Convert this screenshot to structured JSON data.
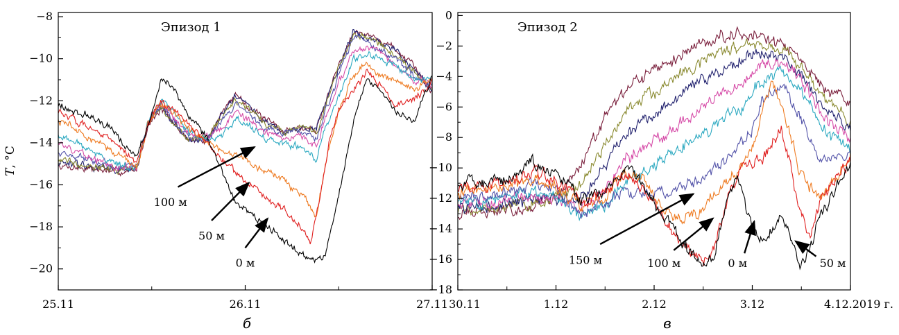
{
  "chart_data": [
    {
      "type": "line",
      "panel_label": "б",
      "episode_label": "Эпизод 1",
      "ylabel_italic": "T",
      "ylabel_unit": ", °C",
      "ylim": [
        -21,
        -7.8
      ],
      "yticks": [
        -20,
        -18,
        -16,
        -14,
        -12,
        -10,
        -8
      ],
      "ytick_labels": [
        "−20",
        "−18",
        "−16",
        "−14",
        "−12",
        "−10",
        "−8"
      ],
      "xlim": [
        0,
        2
      ],
      "xticks": [
        0,
        1,
        2
      ],
      "xtick_labels": [
        "25.11",
        "26.11",
        "27.11"
      ],
      "x_minor_ticks": [
        0.5,
        1.5
      ],
      "series": [
        {
          "name": "0 м",
          "color": "#000000",
          "x": [
            0,
            0.15,
            0.3,
            0.42,
            0.48,
            0.55,
            0.62,
            0.7,
            0.8,
            0.88,
            0.95,
            1.0,
            1.1,
            1.2,
            1.3,
            1.38,
            1.43,
            1.5,
            1.58,
            1.65,
            1.72,
            1.8,
            1.9,
            2.0
          ],
          "y": [
            -12.2,
            -12.7,
            -13.4,
            -14.8,
            -13.0,
            -11.0,
            -11.4,
            -12.8,
            -13.8,
            -15.5,
            -16.8,
            -17.2,
            -17.8,
            -18.6,
            -19.3,
            -19.6,
            -19.4,
            -16.5,
            -13.0,
            -10.8,
            -11.5,
            -12.5,
            -13.0,
            -10.8
          ]
        },
        {
          "name": "50 м",
          "color": "#e02020",
          "x": [
            0,
            0.15,
            0.3,
            0.42,
            0.48,
            0.55,
            0.62,
            0.7,
            0.8,
            0.88,
            0.95,
            1.0,
            1.1,
            1.2,
            1.3,
            1.35,
            1.4,
            1.45,
            1.5,
            1.58,
            1.65,
            1.72,
            1.8,
            1.9,
            2.0
          ],
          "y": [
            -12.5,
            -13.2,
            -14.0,
            -15.0,
            -13.1,
            -12.0,
            -12.5,
            -13.2,
            -14.0,
            -14.8,
            -15.5,
            -15.8,
            -16.5,
            -17.2,
            -18.0,
            -18.8,
            -16.5,
            -14.0,
            -12.5,
            -11.5,
            -10.5,
            -11.2,
            -12.2,
            -12.0,
            -11.0
          ]
        },
        {
          "name": "100 м",
          "color": "#ee7a20",
          "x": [
            0,
            0.15,
            0.3,
            0.42,
            0.48,
            0.55,
            0.62,
            0.7,
            0.8,
            0.88,
            0.95,
            1.0,
            1.1,
            1.2,
            1.3,
            1.38,
            1.43,
            1.5,
            1.58,
            1.65,
            1.72,
            1.8,
            1.9,
            2.0
          ],
          "y": [
            -12.9,
            -13.6,
            -14.4,
            -15.2,
            -13.1,
            -12.2,
            -12.6,
            -13.3,
            -14.0,
            -14.5,
            -14.5,
            -14.8,
            -15.3,
            -15.8,
            -16.5,
            -17.5,
            -15.0,
            -12.5,
            -10.8,
            -10.2,
            -10.8,
            -11.0,
            -11.5,
            -11.0
          ]
        },
        {
          "name": "",
          "color": "#2aa8c0",
          "x": [
            0,
            0.15,
            0.3,
            0.42,
            0.48,
            0.55,
            0.62,
            0.7,
            0.8,
            0.88,
            0.95,
            1.0,
            1.1,
            1.2,
            1.3,
            1.38,
            1.43,
            1.5,
            1.58,
            1.65,
            1.72,
            1.8,
            1.9,
            2.0
          ],
          "y": [
            -13.6,
            -14.3,
            -15.0,
            -15.2,
            -13.0,
            -12.0,
            -12.6,
            -13.5,
            -13.9,
            -13.6,
            -12.8,
            -13.0,
            -13.8,
            -14.0,
            -14.2,
            -14.8,
            -13.2,
            -11.8,
            -10.0,
            -9.8,
            -10.0,
            -10.3,
            -11.0,
            -10.9
          ]
        },
        {
          "name": "",
          "color": "#d64ca8",
          "x": [
            0,
            0.15,
            0.3,
            0.42,
            0.48,
            0.55,
            0.62,
            0.7,
            0.8,
            0.88,
            0.95,
            1.0,
            1.1,
            1.2,
            1.3,
            1.38,
            1.43,
            1.5,
            1.58,
            1.65,
            1.72,
            1.8,
            1.9,
            2.0
          ],
          "y": [
            -14.0,
            -14.6,
            -15.1,
            -15.2,
            -13.0,
            -12.1,
            -12.8,
            -13.6,
            -13.7,
            -13.2,
            -12.5,
            -12.8,
            -13.5,
            -13.7,
            -13.6,
            -14.2,
            -12.8,
            -11.2,
            -9.5,
            -9.5,
            -9.7,
            -10.2,
            -11.0,
            -11.2
          ]
        },
        {
          "name": "",
          "color": "#5252a8",
          "x": [
            0,
            0.15,
            0.3,
            0.42,
            0.48,
            0.55,
            0.62,
            0.7,
            0.8,
            0.88,
            0.95,
            1.0,
            1.1,
            1.2,
            1.3,
            1.38,
            1.43,
            1.5,
            1.58,
            1.65,
            1.72,
            1.8,
            1.9,
            2.0
          ],
          "y": [
            -14.4,
            -14.8,
            -15.2,
            -15.2,
            -13.0,
            -12.2,
            -13.0,
            -13.8,
            -13.9,
            -12.9,
            -12.2,
            -12.5,
            -13.3,
            -13.5,
            -13.4,
            -13.8,
            -12.5,
            -10.8,
            -9.0,
            -9.2,
            -9.6,
            -10.0,
            -10.8,
            -11.3
          ]
        },
        {
          "name": "",
          "color": "#8a8a30",
          "x": [
            0,
            0.15,
            0.3,
            0.42,
            0.48,
            0.55,
            0.62,
            0.7,
            0.8,
            0.88,
            0.95,
            1.0,
            1.1,
            1.2,
            1.3,
            1.38,
            1.43,
            1.5,
            1.58,
            1.65,
            1.72,
            1.8,
            1.9,
            2.0
          ],
          "y": [
            -14.8,
            -15.0,
            -15.3,
            -15.2,
            -13.0,
            -12.3,
            -13.0,
            -13.8,
            -13.8,
            -12.7,
            -12.0,
            -12.3,
            -13.1,
            -13.5,
            -13.3,
            -13.5,
            -12.2,
            -10.5,
            -8.8,
            -9.0,
            -9.3,
            -9.8,
            -10.6,
            -11.4
          ]
        },
        {
          "name": "",
          "color": "#242470",
          "x": [
            0,
            0.15,
            0.3,
            0.42,
            0.48,
            0.55,
            0.62,
            0.7,
            0.8,
            0.88,
            0.95,
            1.0,
            1.1,
            1.2,
            1.3,
            1.38,
            1.43,
            1.5,
            1.58,
            1.65,
            1.72,
            1.8,
            1.9,
            2.0
          ],
          "y": [
            -15.0,
            -15.1,
            -15.3,
            -15.2,
            -13.0,
            -12.3,
            -13.1,
            -13.9,
            -13.8,
            -12.6,
            -11.8,
            -12.2,
            -13.0,
            -13.5,
            -13.3,
            -13.4,
            -12.0,
            -10.4,
            -8.7,
            -9.0,
            -9.2,
            -9.6,
            -10.5,
            -11.5
          ]
        },
        {
          "name": "",
          "color": "#7a1f3c",
          "x": [
            0,
            0.15,
            0.3,
            0.42,
            0.48,
            0.55,
            0.62,
            0.7,
            0.8,
            0.88,
            0.95,
            1.0,
            1.1,
            1.2,
            1.3,
            1.38,
            1.43,
            1.5,
            1.58,
            1.65,
            1.72,
            1.8,
            1.9,
            2.0
          ],
          "y": [
            -15.1,
            -15.2,
            -15.4,
            -15.3,
            -13.1,
            -12.4,
            -13.1,
            -13.9,
            -13.8,
            -12.5,
            -11.7,
            -12.1,
            -12.9,
            -13.4,
            -13.3,
            -13.4,
            -12.0,
            -10.3,
            -8.6,
            -8.9,
            -9.1,
            -9.5,
            -10.4,
            -11.6
          ]
        }
      ],
      "annotations": [
        {
          "text": "100 м",
          "label_x": 0.6,
          "label_y": -17.0,
          "tail_x": 0.64,
          "tail_y": -16.1,
          "head_x": 1.05,
          "head_y": -14.2
        },
        {
          "text": "50 м",
          "label_x": 0.82,
          "label_y": -18.6,
          "tail_x": 0.82,
          "tail_y": -17.7,
          "head_x": 1.02,
          "head_y": -15.9
        },
        {
          "text": "0 м",
          "label_x": 1.0,
          "label_y": -19.9,
          "tail_x": 1.0,
          "tail_y": -19.0,
          "head_x": 1.12,
          "head_y": -17.6
        }
      ]
    },
    {
      "type": "line",
      "panel_label": "в",
      "episode_label": "Эпизод 2",
      "ylim": [
        -18,
        0.2
      ],
      "yticks": [
        -18,
        -16,
        -14,
        -12,
        -10,
        -8,
        -6,
        -4,
        -2,
        0
      ],
      "ytick_labels": [
        "−18",
        "−16",
        "−14",
        "−12",
        "−10",
        "−8",
        "−6",
        "−4",
        "−2",
        "0"
      ],
      "xlim": [
        0,
        4
      ],
      "xticks": [
        0,
        1,
        2,
        3,
        4
      ],
      "xtick_labels": [
        "30.11",
        "1.12",
        "2.12",
        "3.12",
        "4.12.2019 г."
      ],
      "x_minor_ticks": [
        0.5,
        1.5,
        2.5,
        3.5
      ],
      "series": [
        {
          "name": "0 м",
          "color": "#000000",
          "x": [
            0,
            0.5,
            0.75,
            0.9,
            1.0,
            1.1,
            1.25,
            1.5,
            1.7,
            1.9,
            2.1,
            2.3,
            2.5,
            2.6,
            2.75,
            2.85,
            3.0,
            3.1,
            3.2,
            3.3,
            3.5,
            3.6,
            3.7,
            4.0
          ],
          "y": [
            -11.0,
            -10.8,
            -9.5,
            -10.2,
            -10.5,
            -11.0,
            -12.0,
            -11.5,
            -10.0,
            -11.2,
            -13.0,
            -15.0,
            -16.5,
            -16.0,
            -12.0,
            -10.5,
            -14.0,
            -15.0,
            -14.2,
            -13.0,
            -16.5,
            -15.0,
            -13.0,
            -9.8
          ]
        },
        {
          "name": "50 м",
          "color": "#e02020",
          "x": [
            0,
            0.5,
            0.75,
            1.0,
            1.25,
            1.5,
            1.7,
            1.9,
            2.1,
            2.3,
            2.5,
            2.6,
            2.75,
            2.9,
            3.0,
            3.1,
            3.2,
            3.3,
            3.5,
            3.6,
            3.7,
            4.0
          ],
          "y": [
            -11.3,
            -11.0,
            -10.2,
            -10.8,
            -12.3,
            -11.5,
            -10.2,
            -11.5,
            -13.2,
            -15.2,
            -16.2,
            -15.5,
            -12.0,
            -10.0,
            -9.5,
            -9.3,
            -8.5,
            -7.5,
            -13.0,
            -14.5,
            -12.0,
            -9.5
          ]
        },
        {
          "name": "100 м",
          "color": "#ee7a20",
          "x": [
            0,
            0.5,
            0.75,
            1.0,
            1.25,
            1.5,
            1.7,
            1.9,
            2.1,
            2.3,
            2.5,
            2.7,
            2.9,
            3.0,
            3.1,
            3.2,
            3.3,
            3.5,
            3.7,
            4.0
          ],
          "y": [
            -11.6,
            -11.2,
            -10.8,
            -11.2,
            -12.6,
            -11.8,
            -10.4,
            -11.0,
            -12.8,
            -13.5,
            -12.6,
            -11.2,
            -10.0,
            -8.5,
            -6.5,
            -4.5,
            -6.0,
            -10.5,
            -12.0,
            -9.0
          ]
        },
        {
          "name": "150 м",
          "color": "#5252a8",
          "x": [
            0,
            0.5,
            0.75,
            1.0,
            1.25,
            1.5,
            1.7,
            1.9,
            2.1,
            2.3,
            2.5,
            2.7,
            2.9,
            3.0,
            3.1,
            3.3,
            3.5,
            3.7,
            4.0
          ],
          "y": [
            -11.9,
            -11.6,
            -11.1,
            -11.4,
            -12.9,
            -12.4,
            -11.6,
            -11.8,
            -11.6,
            -11.2,
            -10.5,
            -9.5,
            -8.3,
            -7.5,
            -5.5,
            -4.5,
            -7.0,
            -9.5,
            -9.2
          ]
        },
        {
          "name": "",
          "color": "#2aa8c0",
          "x": [
            0,
            0.5,
            0.75,
            1.0,
            1.25,
            1.5,
            1.7,
            1.9,
            2.1,
            2.3,
            2.5,
            2.7,
            2.9,
            3.1,
            3.3,
            3.5,
            3.7,
            4.0
          ],
          "y": [
            -12.2,
            -12.0,
            -11.6,
            -11.7,
            -13.1,
            -12.4,
            -11.0,
            -10.2,
            -9.5,
            -8.6,
            -7.6,
            -7.0,
            -6.0,
            -4.2,
            -3.5,
            -5.0,
            -7.5,
            -8.8
          ]
        },
        {
          "name": "",
          "color": "#d64ca8",
          "x": [
            0,
            0.5,
            0.75,
            1.0,
            1.25,
            1.5,
            1.7,
            1.9,
            2.1,
            2.3,
            2.5,
            2.7,
            2.9,
            3.1,
            3.3,
            3.5,
            3.7,
            4.0
          ],
          "y": [
            -12.4,
            -12.2,
            -11.9,
            -11.9,
            -12.8,
            -11.5,
            -9.5,
            -8.5,
            -7.8,
            -6.9,
            -6.0,
            -5.2,
            -4.3,
            -3.2,
            -3.0,
            -4.2,
            -6.5,
            -8.2
          ]
        },
        {
          "name": "",
          "color": "#242470",
          "x": [
            0,
            0.5,
            0.75,
            1.0,
            1.25,
            1.5,
            1.7,
            1.9,
            2.1,
            2.3,
            2.5,
            2.7,
            2.9,
            3.1,
            3.3,
            3.5,
            3.7,
            4.0
          ],
          "y": [
            -12.6,
            -12.4,
            -12.1,
            -12.0,
            -12.2,
            -10.0,
            -7.8,
            -6.8,
            -6.0,
            -5.0,
            -4.2,
            -3.5,
            -2.8,
            -2.5,
            -2.6,
            -3.8,
            -5.8,
            -7.5
          ]
        },
        {
          "name": "",
          "color": "#8a8a30",
          "x": [
            0,
            0.5,
            0.75,
            1.0,
            1.25,
            1.5,
            1.7,
            1.9,
            2.1,
            2.3,
            2.5,
            2.7,
            2.9,
            3.1,
            3.3,
            3.5,
            3.7,
            4.0
          ],
          "y": [
            -12.8,
            -12.6,
            -12.3,
            -12.0,
            -11.0,
            -8.5,
            -6.5,
            -5.5,
            -4.6,
            -3.8,
            -3.0,
            -2.4,
            -2.0,
            -2.0,
            -2.3,
            -3.4,
            -5.2,
            -6.9
          ]
        },
        {
          "name": "",
          "color": "#7a1f3c",
          "x": [
            0,
            0.5,
            0.75,
            1.0,
            1.25,
            1.5,
            1.7,
            1.9,
            2.1,
            2.3,
            2.5,
            2.7,
            2.9,
            3.1,
            3.3,
            3.5,
            3.7,
            4.0
          ],
          "y": [
            -13.0,
            -12.8,
            -12.5,
            -12.0,
            -9.8,
            -6.8,
            -5.0,
            -4.0,
            -3.2,
            -2.5,
            -1.8,
            -1.3,
            -1.1,
            -1.4,
            -1.9,
            -3.0,
            -4.5,
            -5.8
          ]
        }
      ],
      "annotations": [
        {
          "text": "150 м",
          "label_x": 1.3,
          "label_y": -16.3,
          "tail_x": 1.45,
          "tail_y": -15.0,
          "head_x": 2.4,
          "head_y": -11.7
        },
        {
          "text": "100 м",
          "label_x": 2.1,
          "label_y": -16.5,
          "tail_x": 2.2,
          "tail_y": -15.4,
          "head_x": 2.6,
          "head_y": -13.3
        },
        {
          "text": "0 м",
          "label_x": 2.85,
          "label_y": -16.5,
          "tail_x": 2.92,
          "tail_y": -15.6,
          "head_x": 3.02,
          "head_y": -13.5
        },
        {
          "text": "50 м",
          "label_x": 3.82,
          "label_y": -16.5,
          "tail_x": 3.65,
          "tail_y": -15.8,
          "head_x": 3.44,
          "head_y": -14.8
        }
      ]
    }
  ]
}
